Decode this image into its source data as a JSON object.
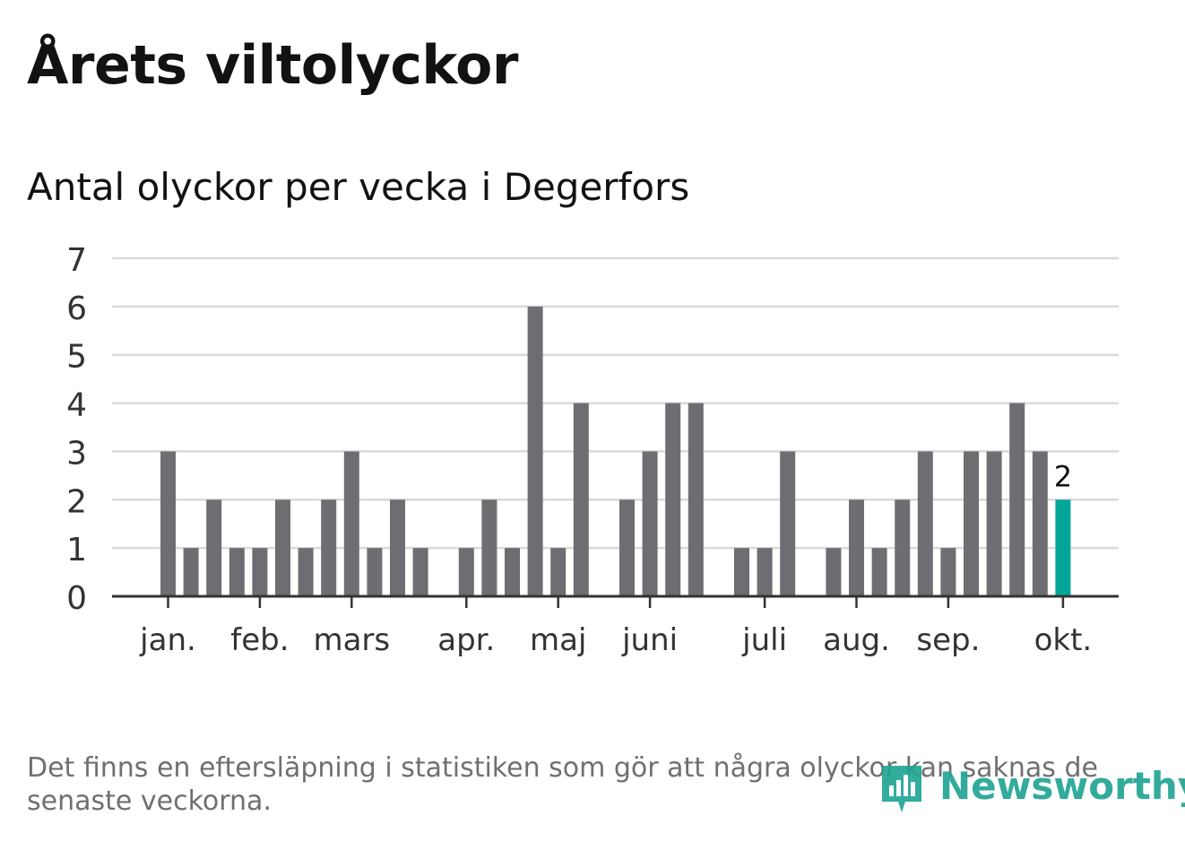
{
  "title": "Årets viltolyckor",
  "subtitle": "Antal olyckor per vecka i Degerfors",
  "footnote": "Det finns en eftersläpning i statistiken som gör att några olyckor kan saknas de senaste veckorna.",
  "logo": {
    "text": "Newsworthy",
    "icon": "newsworthy-logo-icon",
    "color": "#1ca392"
  },
  "colors": {
    "bar": "#6e6d72",
    "highlight": "#00a698",
    "grid": "#d9d9d9",
    "axis": "#333333"
  },
  "chart_data": {
    "type": "bar",
    "title": "",
    "xlabel": "",
    "ylabel": "",
    "ylim": [
      0,
      7
    ],
    "yticks": [
      0,
      1,
      2,
      3,
      4,
      5,
      6,
      7
    ],
    "grid": true,
    "weeks": [
      1,
      2,
      3,
      4,
      5,
      6,
      7,
      8,
      9,
      10,
      11,
      12,
      13,
      14,
      15,
      16,
      17,
      18,
      19,
      20,
      21,
      22,
      23,
      24,
      25,
      26,
      27,
      28,
      29,
      30,
      31,
      32,
      33,
      34,
      35,
      36,
      37,
      38,
      39,
      40
    ],
    "values": [
      3,
      1,
      2,
      1,
      1,
      2,
      1,
      2,
      3,
      1,
      2,
      1,
      0,
      1,
      2,
      1,
      6,
      1,
      4,
      0,
      2,
      3,
      4,
      4,
      0,
      1,
      1,
      3,
      0,
      1,
      2,
      1,
      2,
      3,
      1,
      3,
      3,
      4,
      3,
      2
    ],
    "highlight_index": 39,
    "data_labels": [
      {
        "index": 39,
        "text": "2"
      }
    ],
    "month_ticks": [
      {
        "label": "jan.",
        "week": 1
      },
      {
        "label": "feb.",
        "week": 5
      },
      {
        "label": "mars",
        "week": 9
      },
      {
        "label": "apr.",
        "week": 14
      },
      {
        "label": "maj",
        "week": 18
      },
      {
        "label": "juni",
        "week": 22
      },
      {
        "label": "juli",
        "week": 27
      },
      {
        "label": "aug.",
        "week": 31
      },
      {
        "label": "sep.",
        "week": 35
      },
      {
        "label": "okt.",
        "week": 40
      }
    ]
  }
}
